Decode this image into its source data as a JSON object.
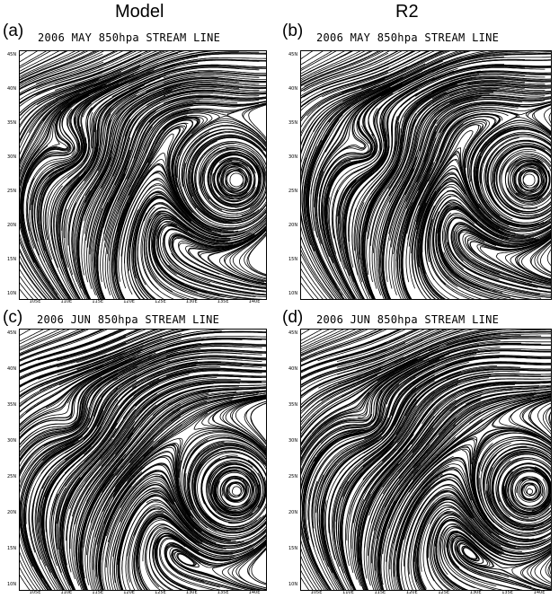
{
  "columns": {
    "left": "Model",
    "right": "R2"
  },
  "panels": [
    {
      "label": "(a)",
      "title": "2006 MAY 850hpa STREAM LINE"
    },
    {
      "label": "(b)",
      "title": "2006 MAY 850hpa STREAM LINE"
    },
    {
      "label": "(c)",
      "title": "2006 JUN 850hpa STREAM LINE"
    },
    {
      "label": "(d)",
      "title": "2006 JUN 850hpa STREAM LINE"
    }
  ],
  "axes": {
    "y_ticks": [
      "45N",
      "40N",
      "35N",
      "30N",
      "25N",
      "20N",
      "15N",
      "10N"
    ],
    "x_ticks": [
      "105E",
      "110E",
      "115E",
      "120E",
      "125E",
      "130E",
      "135E",
      "140E"
    ]
  }
}
